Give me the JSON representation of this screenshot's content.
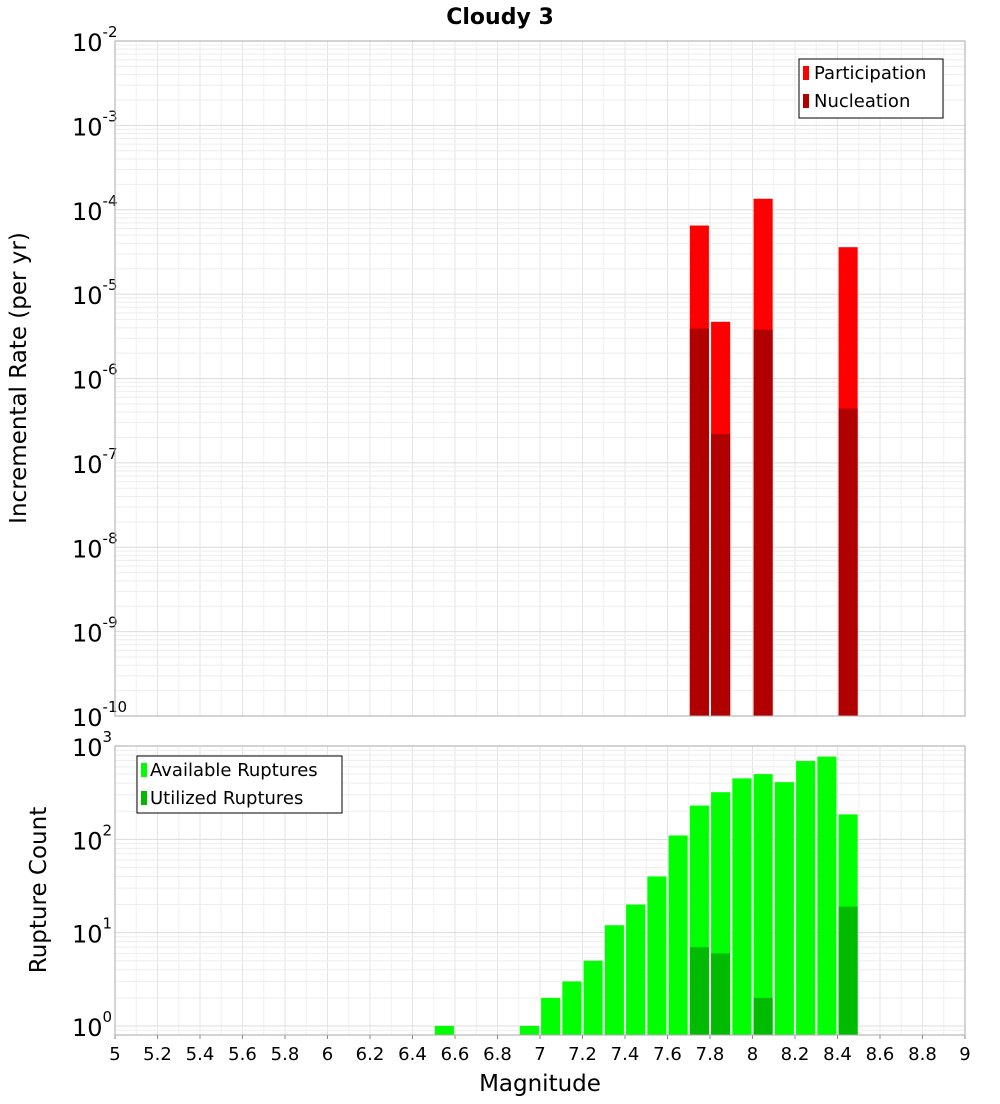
{
  "chart_data": [
    {
      "type": "bar",
      "title": "Cloudy 3",
      "xlabel": "",
      "ylabel": "Incremental Rate (per yr)",
      "yscale": "log",
      "ylim": [
        1e-10,
        0.01
      ],
      "xlim": [
        5,
        9
      ],
      "grid": true,
      "legend_placement": "top-right",
      "y_tick_exponents": [
        "-10",
        "-9",
        "-8",
        "-7",
        "-6",
        "-5",
        "-4",
        "-3",
        "-2"
      ],
      "overlay": true,
      "series": [
        {
          "name": "Participation",
          "color": "#ff0000",
          "x": [
            7.75,
            7.85,
            8.05,
            8.45
          ],
          "values": [
            6.5e-05,
            4.7e-06,
            0.000135,
            3.6e-05
          ]
        },
        {
          "name": "Nucleation",
          "color": "#b00000",
          "x": [
            7.75,
            7.85,
            8.05,
            8.45
          ],
          "values": [
            3.9e-06,
            2.2e-07,
            3.8e-06,
            4.4e-07
          ]
        }
      ]
    },
    {
      "type": "bar",
      "title": "",
      "xlabel": "Magnitude",
      "ylabel": "Rupture Count",
      "yscale": "log",
      "ylim": [
        0.8,
        1000
      ],
      "xlim": [
        5,
        9
      ],
      "grid": true,
      "legend_placement": "top-left",
      "x_ticks": [
        "5",
        "5.2",
        "5.4",
        "5.6",
        "5.8",
        "6",
        "6.2",
        "6.4",
        "6.6",
        "6.8",
        "7",
        "7.2",
        "7.4",
        "7.6",
        "7.8",
        "8",
        "8.2",
        "8.4",
        "8.6",
        "8.8",
        "9"
      ],
      "y_tick_exponents": [
        "0",
        "1",
        "2",
        "3"
      ],
      "overlay": true,
      "series": [
        {
          "name": "Available Ruptures",
          "color": "#00ff00",
          "x": [
            6.55,
            6.95,
            7.05,
            7.15,
            7.25,
            7.35,
            7.45,
            7.55,
            7.65,
            7.75,
            7.85,
            7.95,
            8.05,
            8.15,
            8.25,
            8.35,
            8.45
          ],
          "values": [
            1,
            1,
            2,
            3,
            5,
            12,
            20,
            40,
            110,
            230,
            320,
            450,
            500,
            410,
            690,
            770,
            185
          ]
        },
        {
          "name": "Utilized Ruptures",
          "color": "#00bb00",
          "x": [
            7.75,
            7.85,
            8.05,
            8.45
          ],
          "values": [
            7,
            6,
            2,
            19
          ]
        }
      ]
    }
  ]
}
